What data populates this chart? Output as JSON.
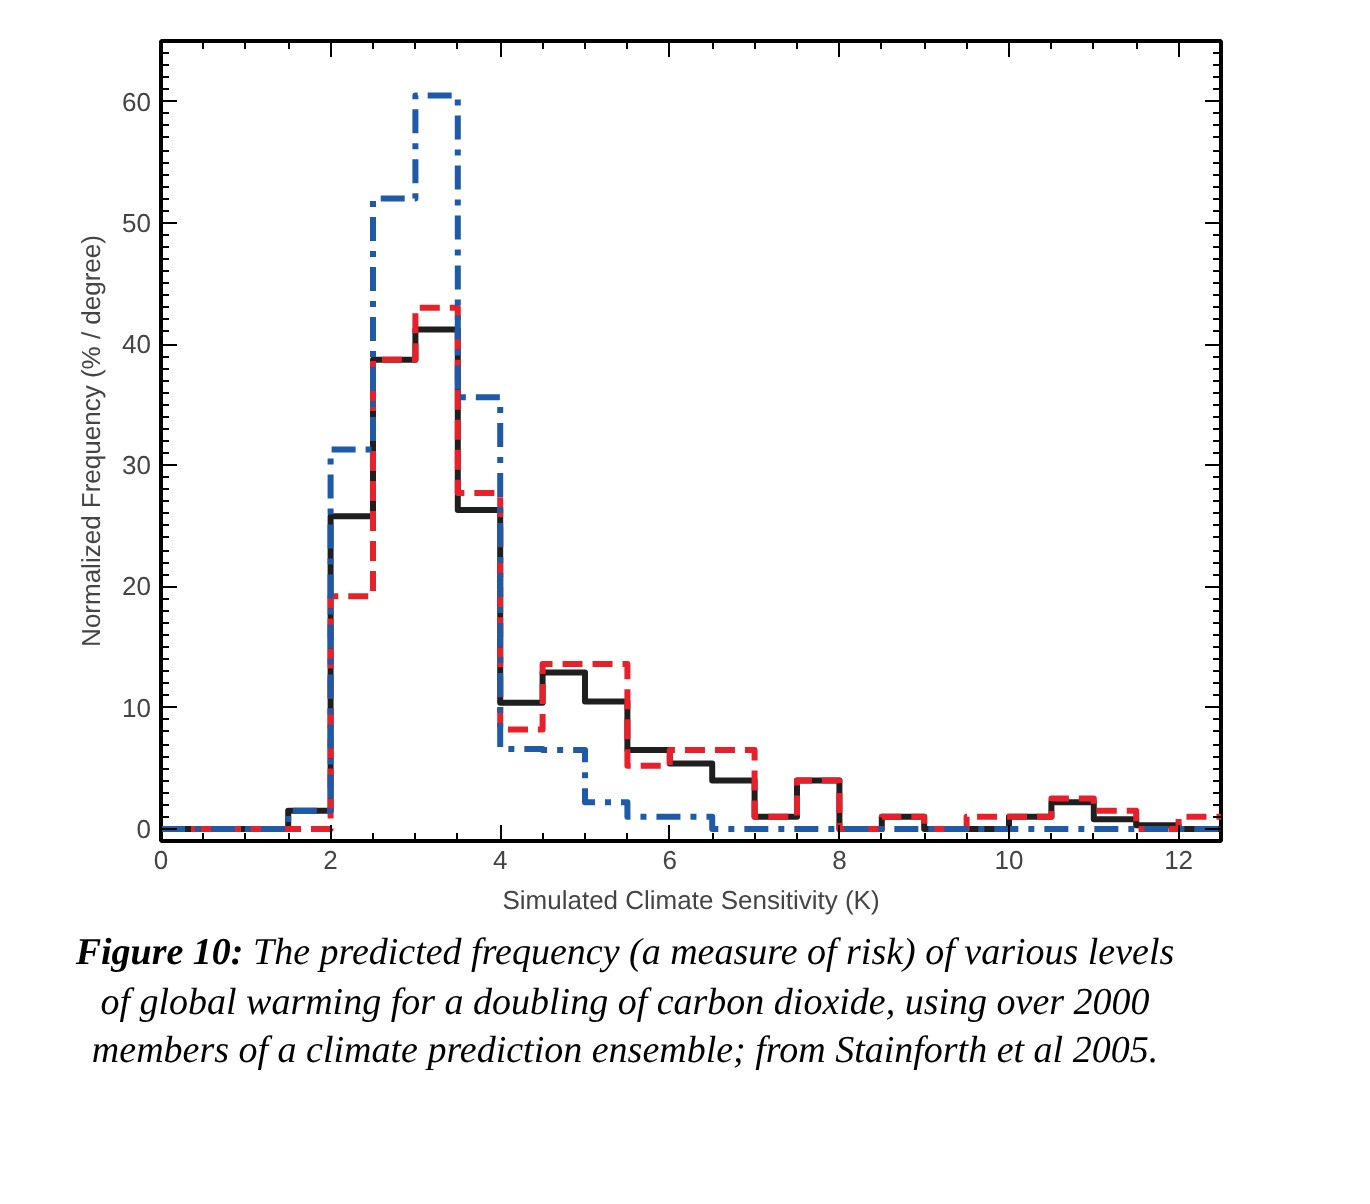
{
  "chart_data": {
    "type": "histogram",
    "xlabel": "Simulated Climate Sensitivity (K)",
    "ylabel": "Normalized Frequency (% / degree)",
    "bins": [
      0,
      0.5,
      1,
      1.5,
      2,
      2.5,
      3,
      3.5,
      4,
      4.5,
      5,
      5.5,
      6,
      6.5,
      7,
      7.5,
      8,
      8.5,
      9,
      9.5,
      10,
      10.5,
      11,
      11.5,
      12,
      12.5
    ],
    "series": [
      {
        "color": "#1f1f1f",
        "line_style": "solid",
        "values": [
          0,
          0,
          0,
          1.5,
          25.8,
          38.7,
          41.2,
          26.3,
          10.4,
          12.9,
          10.5,
          6.5,
          5.4,
          4.0,
          1.0,
          4.0,
          0,
          1.0,
          0,
          0,
          1.0,
          2.2,
          0.8,
          0.3,
          0
        ]
      },
      {
        "color": "#e8202a",
        "line_style": "dashed",
        "values": [
          0,
          0,
          0,
          0,
          19.2,
          38.7,
          43,
          27.7,
          8.2,
          13.6,
          13.6,
          5.2,
          6.5,
          6.5,
          1.0,
          4.0,
          0,
          1.0,
          0,
          1.0,
          1.0,
          2.5,
          1.5,
          0,
          1.0
        ]
      },
      {
        "color": "#1f5aa8",
        "line_style": "dashdot",
        "values": [
          0,
          0,
          0,
          1.5,
          31.3,
          52,
          60.5,
          35.6,
          6.6,
          6.5,
          2.2,
          1.0,
          1.0,
          0,
          0,
          0,
          0,
          0,
          0,
          0,
          0,
          0,
          0,
          0,
          0
        ]
      }
    ],
    "xlim": [
      0,
      12.5
    ],
    "ylim": [
      -1,
      65
    ],
    "xticks": [
      0,
      2,
      4,
      6,
      8,
      10,
      12
    ],
    "yticks": [
      0,
      10,
      20,
      30,
      40,
      50,
      60
    ],
    "grid": false,
    "annotations": [
      "Figure 10: The predicted frequency (a measure of risk) of various levels of global warming for a doubling of carbon dioxide, using over 2000 members of a climate prediction ensemble; from Stainforth et al 2005."
    ]
  }
}
